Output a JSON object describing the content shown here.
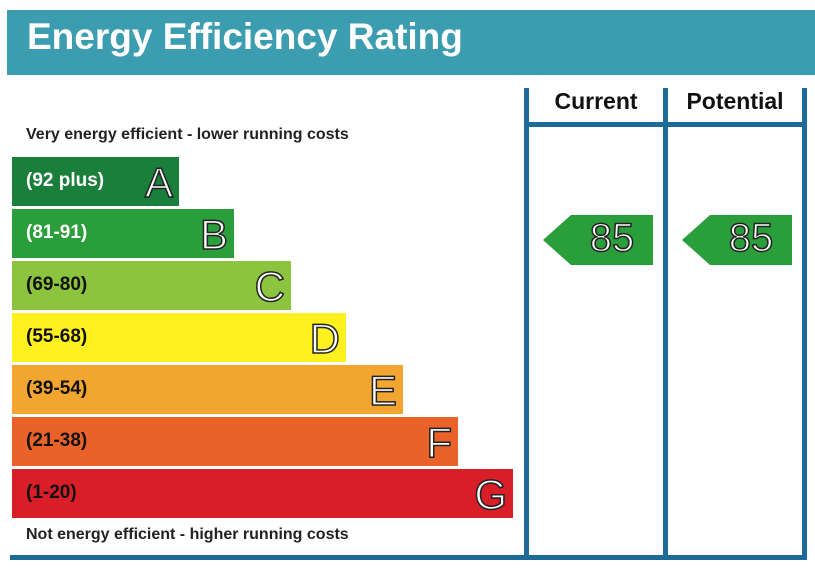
{
  "chart_data": {
    "type": "bar",
    "title": "Energy Efficiency Rating",
    "top_note": "Very energy efficient - lower running costs",
    "bottom_note": "Not energy efficient - higher running costs",
    "columns": [
      "Current",
      "Potential"
    ],
    "bands": [
      {
        "letter": "A",
        "range": "(92 plus)",
        "color": "#1a7f3a",
        "text": "#fff"
      },
      {
        "letter": "B",
        "range": "(81-91)",
        "color": "#2a9e3a",
        "text": "#fff"
      },
      {
        "letter": "C",
        "range": "(69-80)",
        "color": "#8cc43f",
        "text": "#111"
      },
      {
        "letter": "D",
        "range": "(55-68)",
        "color": "#fff01f",
        "text": "#111"
      },
      {
        "letter": "E",
        "range": "(39-54)",
        "color": "#f2a630",
        "text": "#111"
      },
      {
        "letter": "F",
        "range": "(21-38)",
        "color": "#e8622a",
        "text": "#111"
      },
      {
        "letter": "G",
        "range": "(1-20)",
        "color": "#d81e26",
        "text": "#111"
      }
    ],
    "current": {
      "value": "85",
      "band": "B",
      "color": "#2a9e3a"
    },
    "potential": {
      "value": "85",
      "band": "B",
      "color": "#2a9e3a"
    }
  }
}
